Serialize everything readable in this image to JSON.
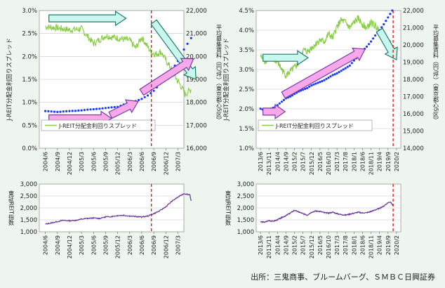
{
  "colors": {
    "page_bg": "#eef5ee",
    "spread_line": "#88cc44",
    "rent_dots": "#1a3aff",
    "index_line": "#6a3a9c",
    "event_line": "#e01010",
    "arrow_pink_fill": "#f7a8e8",
    "arrow_pink_edge": "#7a3aa8",
    "arrow_cyan_fill": "#c8f7ee",
    "arrow_cyan_edge": "#1f7a6a",
    "grid": "#c8c8c8"
  },
  "source": "出所：三鬼商事、ブルームバーグ、ＳＭＢＣ日興証券",
  "chart_data": [
    {
      "type": "line",
      "panel": "top-left",
      "legend": "J-REIT分配金利回りスプレッド",
      "y_left_label": "J-REIT分配金利回りスプレッド",
      "y_left_range": [
        0,
        3.0
      ],
      "y_left_ticks": [
        "0.0%",
        "0.5%",
        "1.0%",
        "1.5%",
        "2.0%",
        "2.5%",
        "3.0%"
      ],
      "y_right_label": "平均募集賃料（円/坪）（東京都心5区）",
      "y_right_range": [
        16000,
        22000
      ],
      "y_right_ticks": [
        "16,000",
        "17,000",
        "18,000",
        "19,000",
        "20,000",
        "21,000",
        "22,000"
      ],
      "x_ticks": [
        "2004/6",
        "2004/9",
        "2004/12",
        "2005/3",
        "2005/6",
        "2005/9",
        "2005/12",
        "2006/3",
        "2006/6",
        "2006/9",
        "2006/12",
        "2007/3"
      ],
      "event_at": 8.8,
      "series": [
        {
          "name": "J-REIT分配金利回りスプレッド",
          "axis": "left",
          "x": [
            0,
            1,
            2,
            3,
            4,
            5,
            6,
            7,
            7.5,
            8,
            8.4,
            8.8,
            9.2,
            9.6,
            10,
            10.4,
            10.8,
            11.2,
            11.6,
            12.1
          ],
          "values": [
            2.65,
            2.62,
            2.58,
            2.6,
            2.28,
            2.45,
            2.4,
            2.35,
            2.18,
            2.42,
            2.25,
            2.08,
            2.05,
            2.1,
            1.92,
            1.75,
            1.55,
            1.38,
            1.18,
            1.28
          ]
        },
        {
          "name": "平均募集賃料",
          "axis": "right",
          "x": [
            0,
            0.5,
            1,
            1.5,
            2,
            2.5,
            3,
            3.5,
            4,
            4.5,
            5,
            5.5,
            6,
            6.5,
            7,
            7.5,
            8,
            8.5,
            9,
            9.5,
            10,
            10.5,
            11,
            11.5,
            12.1
          ],
          "values": [
            17620,
            17600,
            17580,
            17600,
            17620,
            17630,
            17650,
            17680,
            17700,
            17720,
            17750,
            17780,
            17800,
            17900,
            17980,
            18050,
            18150,
            18300,
            18500,
            18800,
            19100,
            19400,
            19800,
            20300,
            20800
          ]
        }
      ],
      "annotations": [
        {
          "kind": "arrow",
          "style": "cyan",
          "from": [
            0.3,
            2.83
          ],
          "to": [
            6.7,
            2.83
          ]
        },
        {
          "kind": "arrow",
          "style": "cyan",
          "from": [
            9.0,
            2.75
          ],
          "to": [
            12.5,
            1.5
          ]
        },
        {
          "kind": "arrow",
          "style": "pink",
          "from": [
            0.3,
            0.65
          ],
          "to": [
            5.5,
            0.65
          ]
        },
        {
          "kind": "arrow",
          "style": "pink",
          "from": [
            5.4,
            0.72
          ],
          "to": [
            7.7,
            1.02
          ]
        },
        {
          "kind": "arrow",
          "style": "pink",
          "from": [
            8.0,
            1.22
          ],
          "to": [
            12.3,
            1.95
          ]
        }
      ]
    },
    {
      "type": "line",
      "panel": "top-right",
      "legend": "J-REIT分配金利回りスプレッド",
      "y_left_label": "J-REIT分配金利回りスプレッド",
      "y_left_range": [
        1.0,
        4.5
      ],
      "y_left_ticks": [
        "1.0%",
        "1.5%",
        "2.0%",
        "2.5%",
        "3.0%",
        "3.5%",
        "4.0%",
        "4.5%"
      ],
      "y_right_label": "平均募集賃料（円/坪）（東京都心5区）",
      "y_right_range": [
        14000,
        22000
      ],
      "y_right_ticks": [
        "14,000",
        "15,000",
        "16,000",
        "17,000",
        "18,000",
        "19,000",
        "20,000",
        "21,000",
        "22,000"
      ],
      "x_ticks": [
        "2013/6",
        "2013/11",
        "2014/4",
        "2014/9",
        "2015/2",
        "2015/7",
        "2015/12",
        "2016/5",
        "2016/10",
        "2017/3",
        "2017/8",
        "2018/1",
        "2018/6",
        "2018/11",
        "2019/4",
        "2019/9",
        "2020/2"
      ],
      "event_at": 15.6,
      "series": [
        {
          "name": "J-REIT分配金利回りスプレッド",
          "axis": "left",
          "x": [
            0,
            0.5,
            1,
            1.5,
            2,
            2.5,
            3,
            3.5,
            4,
            4.5,
            5,
            5.5,
            6,
            6.5,
            7,
            7.5,
            8,
            8.5,
            9,
            9.5,
            10,
            10.5,
            11,
            11.5,
            12,
            12.5,
            13,
            13.5,
            14,
            14.5,
            15,
            15.3
          ],
          "values": [
            3.35,
            3.2,
            3.32,
            3.25,
            3.2,
            3.0,
            2.85,
            2.95,
            3.05,
            3.15,
            3.5,
            3.45,
            3.55,
            3.65,
            3.75,
            3.7,
            3.9,
            3.8,
            4.1,
            4.25,
            4.2,
            4.05,
            4.2,
            4.3,
            4.15,
            4.05,
            4.2,
            4.1,
            4.0,
            3.75,
            3.6,
            3.68
          ]
        },
        {
          "name": "平均募集賃料",
          "axis": "right",
          "x": [
            0,
            0.5,
            1,
            1.5,
            2,
            2.5,
            3,
            3.5,
            4,
            4.5,
            5,
            5.5,
            6,
            6.5,
            7,
            7.5,
            8,
            8.5,
            9,
            9.5,
            10,
            10.5,
            11,
            11.5,
            12,
            12.5,
            13,
            13.5,
            14,
            14.5,
            15,
            15.5
          ],
          "values": [
            16300,
            16200,
            16250,
            16350,
            16500,
            16700,
            16900,
            17000,
            17150,
            17300,
            17400,
            17500,
            17650,
            17750,
            17850,
            17950,
            18100,
            18250,
            18350,
            18500,
            18650,
            18800,
            19100,
            19350,
            19650,
            19900,
            20200,
            20550,
            20850,
            21200,
            21600,
            22000
          ]
        }
      ],
      "annotations": [
        {
          "kind": "arrow",
          "style": "cyan",
          "from": [
            0.3,
            3.3
          ],
          "to": [
            5.6,
            3.3
          ]
        },
        {
          "kind": "arrow",
          "style": "cyan",
          "from": [
            14.0,
            4.0
          ],
          "to": [
            16.0,
            3.25
          ]
        },
        {
          "kind": "arrow",
          "style": "pink",
          "from": [
            0.3,
            1.93
          ],
          "to": [
            2.9,
            1.93
          ]
        },
        {
          "kind": "arrow",
          "style": "pink",
          "from": [
            2.7,
            2.35
          ],
          "to": [
            12.3,
            3.52
          ]
        }
      ]
    },
    {
      "type": "line",
      "panel": "bottom-left",
      "y_label": "東証REIT指数",
      "y_range": [
        1000,
        3000
      ],
      "y_ticks": [
        "1,000",
        "1,500",
        "2,000",
        "2,500",
        "3,000"
      ],
      "x_ticks": [
        "2004/6",
        "2004/9",
        "2004/12",
        "2005/3",
        "2005/6",
        "2005/9",
        "2005/12",
        "2006/3",
        "2006/6",
        "2006/9",
        "2006/12",
        "2007/3"
      ],
      "event_at": 8.8,
      "series": [
        {
          "name": "東証REIT指数",
          "x": [
            0,
            0.5,
            1,
            1.5,
            2,
            2.5,
            3,
            3.5,
            4,
            4.5,
            5,
            5.5,
            6,
            6.5,
            7,
            7.5,
            8,
            8.5,
            9,
            9.5,
            10,
            10.5,
            11,
            11.5,
            12,
            12.1
          ],
          "values": [
            1320,
            1370,
            1430,
            1480,
            1460,
            1480,
            1530,
            1560,
            1580,
            1560,
            1620,
            1640,
            1680,
            1690,
            1660,
            1640,
            1620,
            1660,
            1760,
            1880,
            2050,
            2280,
            2450,
            2600,
            2550,
            2300
          ]
        }
      ]
    },
    {
      "type": "line",
      "panel": "bottom-right",
      "y_label": "東証REIT指数",
      "y_range": [
        1000,
        3000
      ],
      "y_ticks": [
        "1,000",
        "1,500",
        "2,000",
        "2,500",
        "3,000"
      ],
      "x_ticks": [
        "2013/6",
        "2013/11",
        "2014/4",
        "2014/9",
        "2015/2",
        "2015/7",
        "2015/12",
        "2016/5",
        "2016/10",
        "2017/3",
        "2017/8",
        "2018/1",
        "2018/6",
        "2018/11",
        "2019/4",
        "2019/9",
        "2020/2"
      ],
      "event_at": 15.6,
      "series": [
        {
          "name": "東証REIT指数",
          "x": [
            0,
            0.5,
            1,
            1.5,
            2,
            2.5,
            3,
            3.5,
            4,
            4.5,
            5,
            5.5,
            6,
            6.5,
            7,
            7.5,
            8,
            8.5,
            9,
            9.5,
            10,
            10.5,
            11,
            11.5,
            12,
            12.5,
            13,
            13.5,
            14,
            14.5,
            15,
            15.3,
            15.6
          ],
          "values": [
            1420,
            1400,
            1470,
            1440,
            1500,
            1600,
            1680,
            1780,
            1900,
            1830,
            1760,
            1700,
            1820,
            1870,
            1860,
            1800,
            1780,
            1820,
            1760,
            1720,
            1700,
            1740,
            1780,
            1820,
            1790,
            1800,
            1850,
            1920,
            1980,
            2080,
            2220,
            2250,
            2100
          ]
        }
      ]
    }
  ]
}
